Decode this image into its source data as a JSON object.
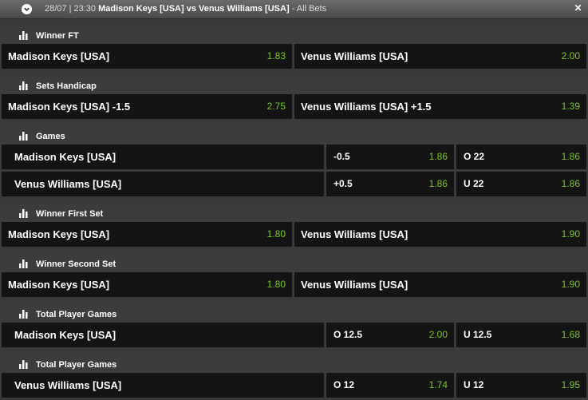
{
  "header": {
    "datetime": "28/07 | 23:30",
    "match": "Madison Keys [USA] vs Venus Williams [USA]",
    "suffix": "- All Bets"
  },
  "colors": {
    "odd": "#7cc427",
    "cell_bg": "#141414",
    "section_bg": "#3c3c3c"
  },
  "sections": {
    "winner_ft": {
      "title": "Winner FT",
      "left": {
        "name": "Madison Keys [USA]",
        "odd": "1.83"
      },
      "right": {
        "name": "Venus Williams [USA]",
        "odd": "2.00"
      }
    },
    "sets_handicap": {
      "title": "Sets Handicap",
      "left": {
        "name": "Madison Keys [USA] -1.5",
        "odd": "2.75"
      },
      "right": {
        "name": "Venus Williams [USA] +1.5",
        "odd": "1.39"
      }
    },
    "games": {
      "title": "Games",
      "row1": {
        "name": "Madison Keys [USA]",
        "hcap": "-0.5",
        "hcap_odd": "1.86",
        "total": "O 22",
        "total_odd": "1.86"
      },
      "row2": {
        "name": "Venus Williams [USA]",
        "hcap": "+0.5",
        "hcap_odd": "1.86",
        "total": "U 22",
        "total_odd": "1.86"
      }
    },
    "winner_first_set": {
      "title": "Winner First Set",
      "left": {
        "name": "Madison Keys [USA]",
        "odd": "1.80"
      },
      "right": {
        "name": "Venus Williams [USA]",
        "odd": "1.90"
      }
    },
    "winner_second_set": {
      "title": "Winner Second Set",
      "left": {
        "name": "Madison Keys [USA]",
        "odd": "1.80"
      },
      "right": {
        "name": "Venus Williams [USA]",
        "odd": "1.90"
      }
    },
    "total_player_games_1": {
      "title": "Total Player Games",
      "name": "Madison Keys [USA]",
      "over": "O 12.5",
      "over_odd": "2.00",
      "under": "U 12.5",
      "under_odd": "1.68"
    },
    "total_player_games_2": {
      "title": "Total Player Games",
      "name": "Venus Williams [USA]",
      "over": "O 12",
      "over_odd": "1.74",
      "under": "U 12",
      "under_odd": "1.95"
    }
  }
}
